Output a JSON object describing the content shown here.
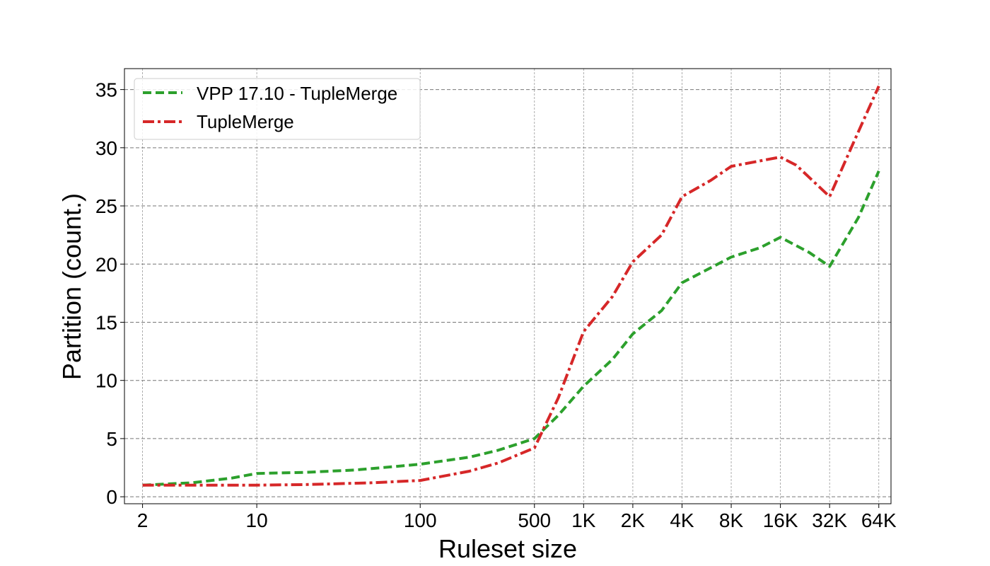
{
  "chart_data": {
    "type": "line",
    "xlabel": "Ruleset size",
    "ylabel": "Partition (count.)",
    "x_scale": "log2",
    "x_ticks": [
      {
        "value": 2,
        "label": "2"
      },
      {
        "value": 10,
        "label": "10"
      },
      {
        "value": 100,
        "label": "100"
      },
      {
        "value": 500,
        "label": "500"
      },
      {
        "value": 1000,
        "label": "1K"
      },
      {
        "value": 2000,
        "label": "2K"
      },
      {
        "value": 4000,
        "label": "4K"
      },
      {
        "value": 8000,
        "label": "8K"
      },
      {
        "value": 16000,
        "label": "16K"
      },
      {
        "value": 32000,
        "label": "32K"
      },
      {
        "value": 64000,
        "label": "64K"
      }
    ],
    "y_ticks": [
      0,
      5,
      10,
      15,
      20,
      25,
      30,
      35
    ],
    "ylim": [
      -0.6,
      36.8
    ],
    "grid": true,
    "legend_position": "top-left",
    "series": [
      {
        "name": "VPP 17.10 - TupleMerge",
        "color": "#2ca02c",
        "style": "dashed",
        "points": [
          [
            2,
            1.0
          ],
          [
            4,
            1.2
          ],
          [
            7,
            1.6
          ],
          [
            10,
            2.0
          ],
          [
            20,
            2.1
          ],
          [
            40,
            2.3
          ],
          [
            70,
            2.6
          ],
          [
            100,
            2.8
          ],
          [
            200,
            3.4
          ],
          [
            300,
            4.0
          ],
          [
            500,
            5.0
          ],
          [
            700,
            7.0
          ],
          [
            1000,
            9.5
          ],
          [
            1500,
            11.8
          ],
          [
            2000,
            14.0
          ],
          [
            3000,
            16.0
          ],
          [
            4000,
            18.4
          ],
          [
            8000,
            20.6
          ],
          [
            12000,
            21.4
          ],
          [
            16000,
            22.3
          ],
          [
            24000,
            21.0
          ],
          [
            32000,
            19.8
          ],
          [
            48000,
            24.0
          ],
          [
            64000,
            28.0
          ]
        ]
      },
      {
        "name": "TupleMerge",
        "color": "#d62728",
        "style": "dashdot",
        "points": [
          [
            2,
            1.0
          ],
          [
            10,
            1.0
          ],
          [
            20,
            1.05
          ],
          [
            50,
            1.2
          ],
          [
            100,
            1.4
          ],
          [
            200,
            2.2
          ],
          [
            300,
            2.9
          ],
          [
            500,
            4.2
          ],
          [
            700,
            8.5
          ],
          [
            1000,
            14.2
          ],
          [
            1500,
            17.2
          ],
          [
            2000,
            20.2
          ],
          [
            3000,
            22.5
          ],
          [
            4000,
            25.8
          ],
          [
            6000,
            27.2
          ],
          [
            8000,
            28.4
          ],
          [
            16000,
            29.2
          ],
          [
            20000,
            28.5
          ],
          [
            32000,
            25.8
          ],
          [
            45000,
            30.5
          ],
          [
            64000,
            35.3
          ]
        ]
      }
    ]
  }
}
